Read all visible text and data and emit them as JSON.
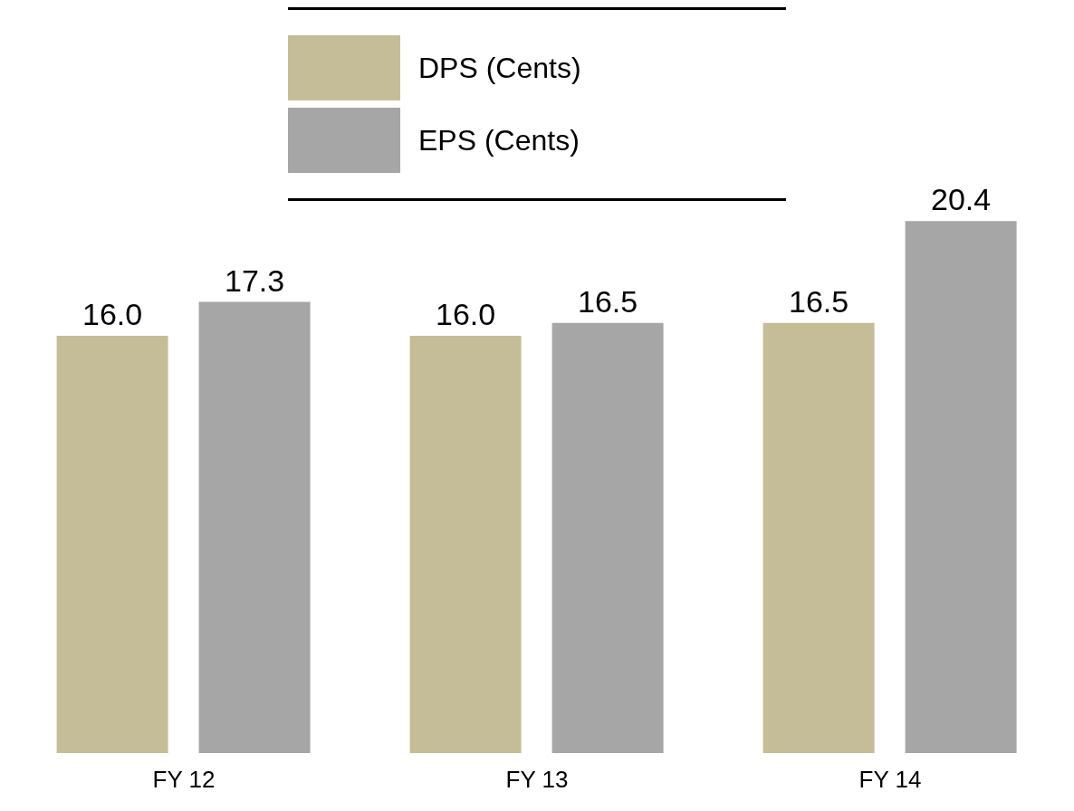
{
  "chart_data": {
    "type": "bar",
    "categories": [
      "FY 12",
      "FY 13",
      "FY 14"
    ],
    "series": [
      {
        "name": "DPS (Cents)",
        "color": "#c4bd97",
        "values": [
          16.0,
          16.0,
          16.5
        ],
        "value_labels": [
          "16.0",
          "16.0",
          "16.5"
        ]
      },
      {
        "name": "EPS (Cents)",
        "color": "#a6a6a6",
        "values": [
          17.3,
          16.5,
          20.4
        ],
        "value_labels": [
          "17.3",
          "16.5",
          "20.4"
        ]
      }
    ],
    "legend": "top"
  }
}
